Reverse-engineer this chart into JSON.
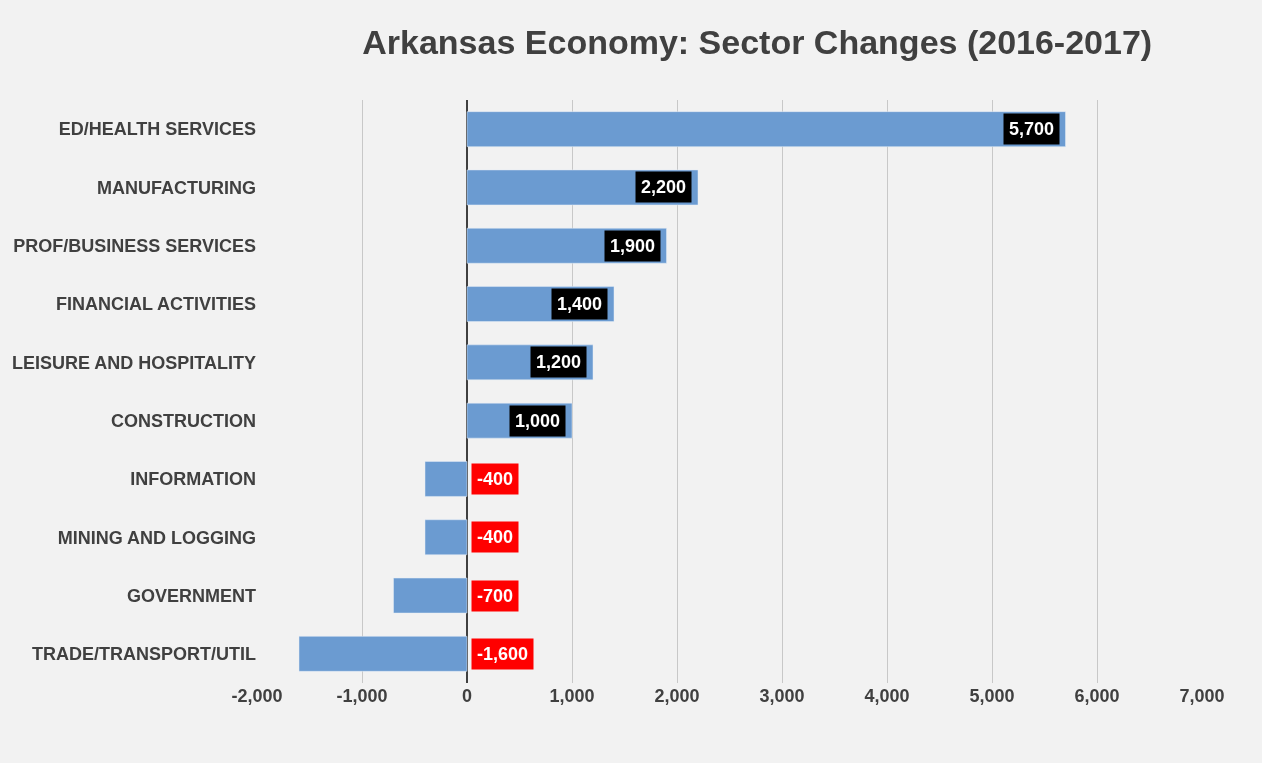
{
  "chart_data": {
    "type": "bar",
    "orientation": "horizontal",
    "title": "Arkansas Economy: Sector Changes (2016-2017)",
    "categories": [
      "ED/HEALTH SERVICES",
      "MANUFACTURING",
      "PROF/BUSINESS SERVICES",
      "FINANCIAL ACTIVITIES",
      "LEISURE AND HOSPITALITY",
      "CONSTRUCTION",
      "INFORMATION",
      "MINING AND LOGGING",
      "GOVERNMENT",
      "TRADE/TRANSPORT/UTIL"
    ],
    "values": [
      5700,
      2200,
      1900,
      1400,
      1200,
      1000,
      -400,
      -400,
      -700,
      -1600
    ],
    "value_labels": [
      "5,700",
      "2,200",
      "1,900",
      "1,400",
      "1,200",
      "1,000",
      "-400",
      "-400",
      "-700",
      "-1,600"
    ],
    "color": "#6b9bd1",
    "xlim": [
      -2000,
      7000
    ],
    "xticks": [
      {
        "value": -2000,
        "label": "-2,000"
      },
      {
        "value": -1000,
        "label": "-1,000"
      },
      0,
      {
        "value": 1000,
        "label": "1,000"
      },
      {
        "value": 2000,
        "label": "2,000"
      },
      {
        "value": 3000,
        "label": "3,000"
      },
      {
        "value": 4000,
        "label": "4,000"
      },
      {
        "value": 5000,
        "label": "5,000"
      },
      {
        "value": 6000,
        "label": "6,000"
      },
      {
        "value": 7000,
        "label": "7,000"
      }
    ],
    "grid": "x"
  }
}
